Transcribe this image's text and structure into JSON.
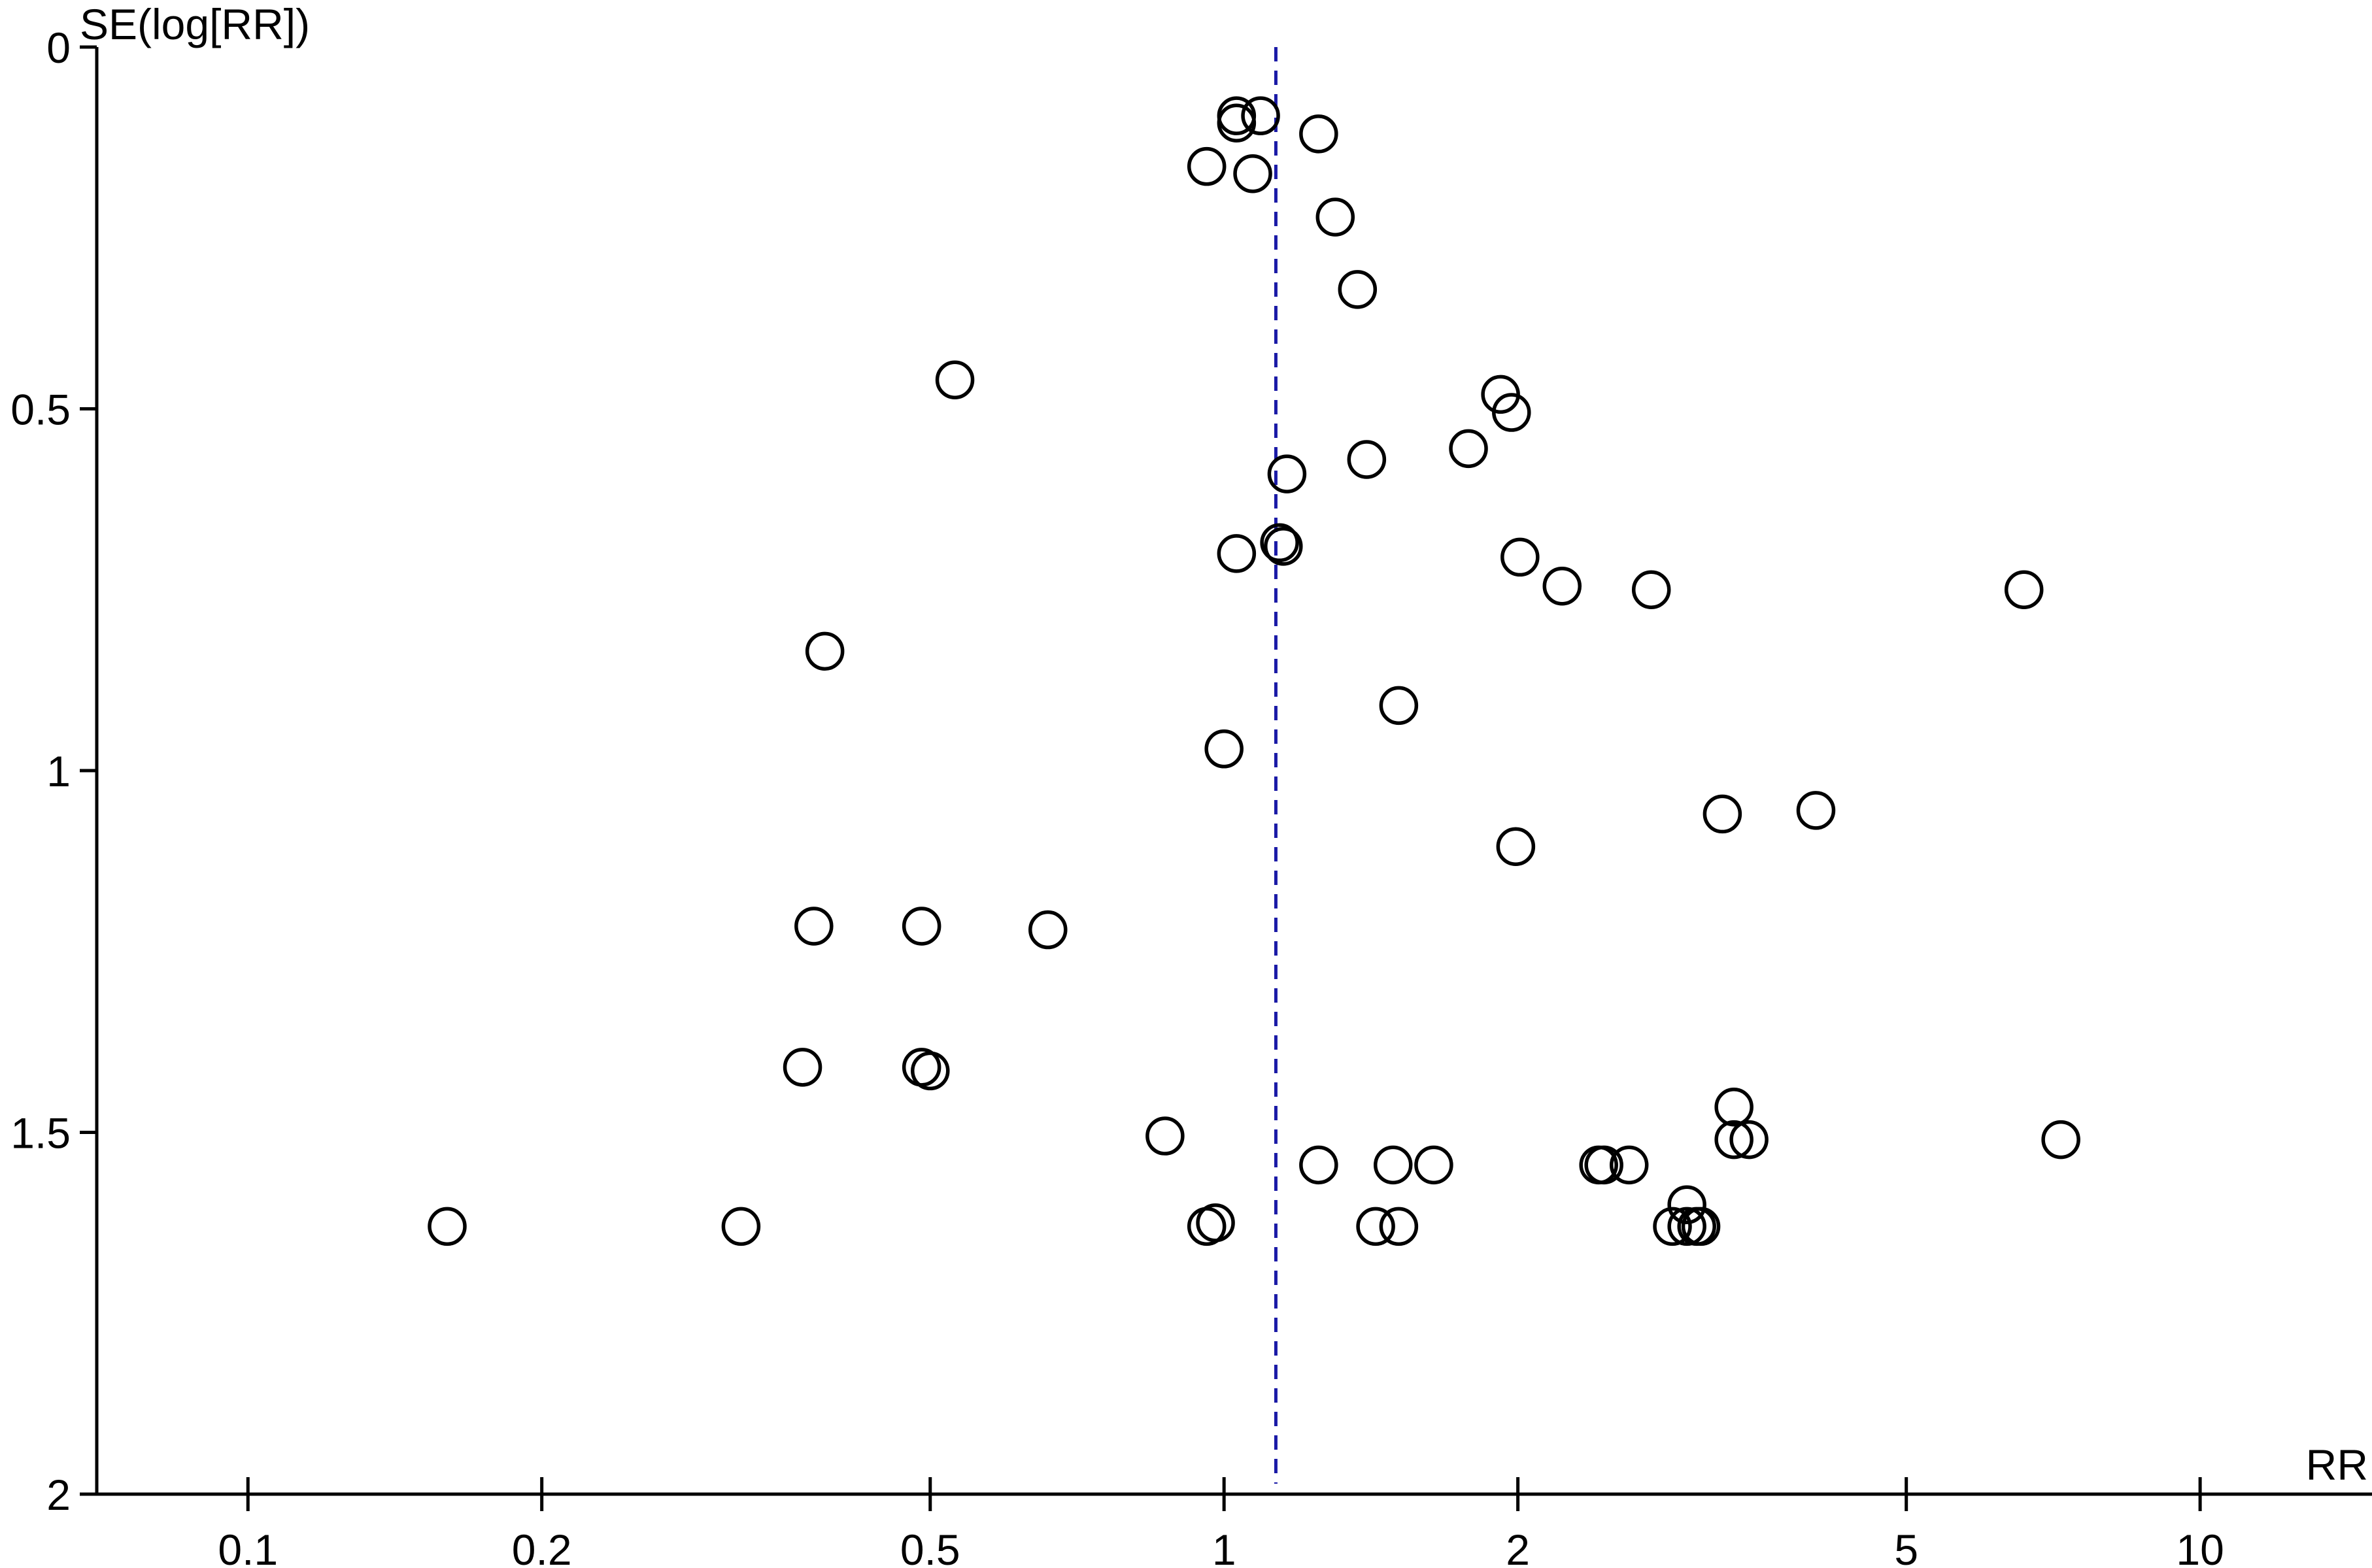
{
  "chart_data": {
    "type": "scatter",
    "title": "",
    "xlabel": "RR",
    "ylabel": "SE(log[RR])",
    "x_scale": "log",
    "xlim": [
      0.07,
      15
    ],
    "ylim": [
      0,
      2
    ],
    "y_inverted": true,
    "grid": false,
    "x_ticks": [
      0.1,
      0.2,
      0.5,
      1,
      2,
      5,
      10
    ],
    "x_tick_labels": [
      "0.1",
      "0.2",
      "0.5",
      "1",
      "2",
      "5",
      "10"
    ],
    "y_ticks": [
      0,
      0.5,
      1,
      1.5,
      2
    ],
    "y_tick_labels": [
      "0",
      "0.5",
      "1",
      "1.5",
      "2"
    ],
    "pooled_estimate": {
      "x": 1.13,
      "color": "#1a1aa6",
      "style": "dashed"
    },
    "points": [
      {
        "x": 1.03,
        "y": 0.095
      },
      {
        "x": 1.09,
        "y": 0.095
      },
      {
        "x": 1.03,
        "y": 0.105
      },
      {
        "x": 1.25,
        "y": 0.12
      },
      {
        "x": 0.96,
        "y": 0.165
      },
      {
        "x": 1.07,
        "y": 0.175
      },
      {
        "x": 1.3,
        "y": 0.235
      },
      {
        "x": 1.37,
        "y": 0.335
      },
      {
        "x": 0.53,
        "y": 0.46
      },
      {
        "x": 1.92,
        "y": 0.48
      },
      {
        "x": 1.97,
        "y": 0.505
      },
      {
        "x": 1.78,
        "y": 0.555
      },
      {
        "x": 1.4,
        "y": 0.57
      },
      {
        "x": 1.16,
        "y": 0.59
      },
      {
        "x": 1.14,
        "y": 0.685
      },
      {
        "x": 1.15,
        "y": 0.69
      },
      {
        "x": 1.03,
        "y": 0.7
      },
      {
        "x": 2.01,
        "y": 0.705
      },
      {
        "x": 2.22,
        "y": 0.745
      },
      {
        "x": 2.74,
        "y": 0.75
      },
      {
        "x": 6.6,
        "y": 0.75
      },
      {
        "x": 0.39,
        "y": 0.835
      },
      {
        "x": 1.51,
        "y": 0.91
      },
      {
        "x": 1.0,
        "y": 0.97
      },
      {
        "x": 4.04,
        "y": 1.055
      },
      {
        "x": 3.24,
        "y": 1.06
      },
      {
        "x": 1.99,
        "y": 1.105
      },
      {
        "x": 0.38,
        "y": 1.215
      },
      {
        "x": 0.49,
        "y": 1.215
      },
      {
        "x": 0.66,
        "y": 1.22
      },
      {
        "x": 0.37,
        "y": 1.41
      },
      {
        "x": 0.49,
        "y": 1.41
      },
      {
        "x": 0.5,
        "y": 1.415
      },
      {
        "x": 3.33,
        "y": 1.465
      },
      {
        "x": 0.87,
        "y": 1.505
      },
      {
        "x": 3.33,
        "y": 1.51
      },
      {
        "x": 3.45,
        "y": 1.51
      },
      {
        "x": 7.2,
        "y": 1.51
      },
      {
        "x": 1.25,
        "y": 1.545
      },
      {
        "x": 1.49,
        "y": 1.545
      },
      {
        "x": 1.64,
        "y": 1.545
      },
      {
        "x": 2.42,
        "y": 1.545
      },
      {
        "x": 2.45,
        "y": 1.545
      },
      {
        "x": 2.6,
        "y": 1.545
      },
      {
        "x": 2.98,
        "y": 1.6
      },
      {
        "x": 0.16,
        "y": 1.63
      },
      {
        "x": 0.32,
        "y": 1.63
      },
      {
        "x": 0.96,
        "y": 1.63
      },
      {
        "x": 0.98,
        "y": 1.625
      },
      {
        "x": 1.43,
        "y": 1.63
      },
      {
        "x": 1.51,
        "y": 1.63
      },
      {
        "x": 2.88,
        "y": 1.63
      },
      {
        "x": 2.98,
        "y": 1.63
      },
      {
        "x": 3.05,
        "y": 1.63
      },
      {
        "x": 3.08,
        "y": 1.63
      }
    ]
  }
}
